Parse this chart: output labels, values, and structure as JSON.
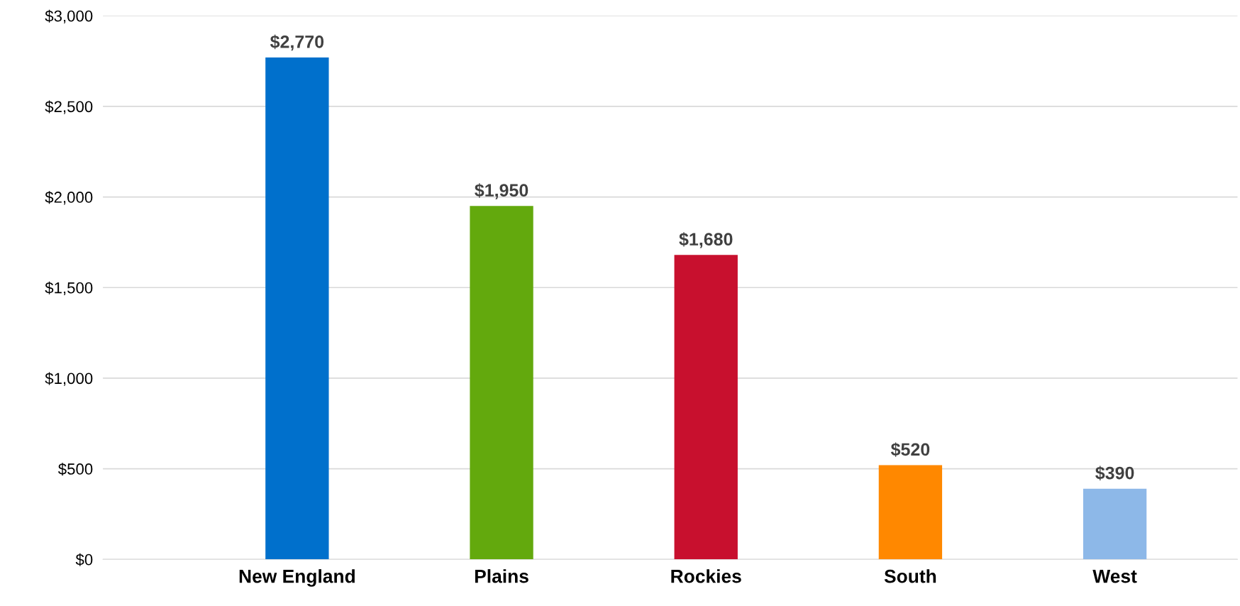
{
  "chart_data": {
    "type": "bar",
    "categories": [
      "New England",
      "Plains",
      "Rockies",
      "South",
      "West"
    ],
    "values": [
      2770,
      1950,
      1680,
      520,
      390
    ],
    "colors": [
      "#0070cc",
      "#63a90d",
      "#c8102e",
      "#ff8800",
      "#8db8e8"
    ],
    "value_labels": [
      "$2,770",
      "$1,950",
      "$1,680",
      "$520",
      "$390"
    ],
    "ylim": [
      0,
      3000
    ],
    "yticks": [
      {
        "value": 0,
        "label": "$0"
      },
      {
        "value": 500,
        "label": "$500"
      },
      {
        "value": 1000,
        "label": "$1,000"
      },
      {
        "value": 1500,
        "label": "$1,500"
      },
      {
        "value": 2000,
        "label": "$2,000"
      },
      {
        "value": 2500,
        "label": "$2,500"
      },
      {
        "value": 3000,
        "label": "$3,000"
      }
    ],
    "grid": "y",
    "legend": false
  }
}
